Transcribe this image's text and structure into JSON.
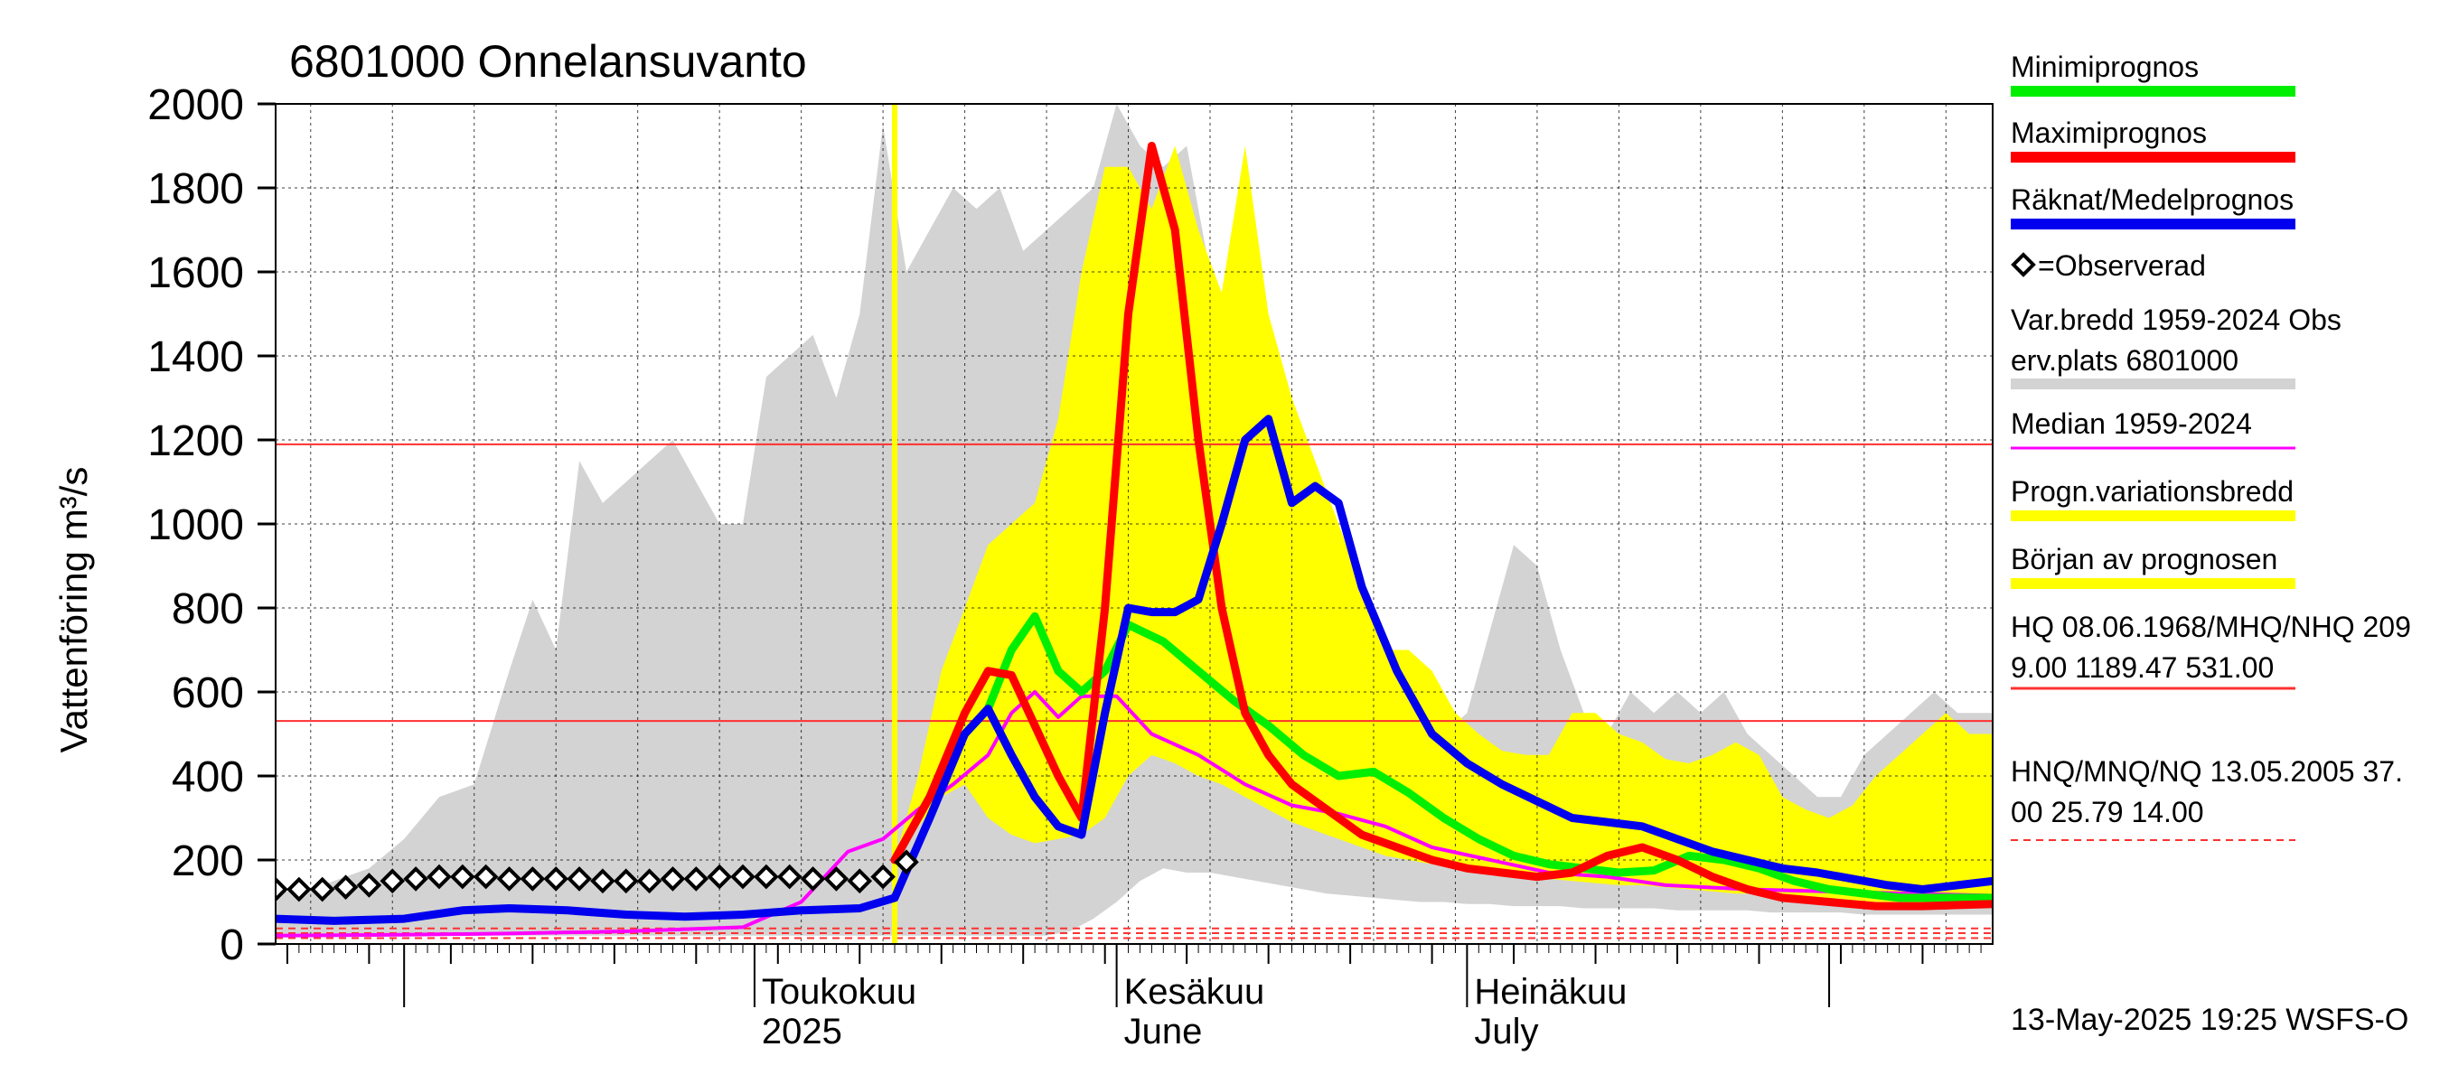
{
  "chart_data": {
    "type": "line",
    "title": "6801000 Onnelansuvanto",
    "ylabel": "Vattenföring m³/s",
    "ylim": [
      0,
      2000
    ],
    "yticks": [
      0,
      200,
      400,
      600,
      800,
      1000,
      1200,
      1400,
      1600,
      1800,
      2000
    ],
    "x_range": [
      "2025-03-21",
      "2025-08-15"
    ],
    "grid": true,
    "month_labels": [
      {
        "date": "2025-05-01",
        "line1": "Toukokuu",
        "line2": "2025"
      },
      {
        "date": "2025-06-01",
        "line1": "Kesäkuu",
        "line2": "June"
      },
      {
        "date": "2025-07-01",
        "line1": "Heinäkuu",
        "line2": "July"
      }
    ],
    "forecast_start": "2025-05-13",
    "reference_lines": [
      {
        "value": 1189.47,
        "color": "#ff3030",
        "style": "solid"
      },
      {
        "value": 531.0,
        "color": "#ff3030",
        "style": "solid"
      },
      {
        "value": 37.0,
        "color": "#ff3030",
        "style": "dashed"
      },
      {
        "value": 25.79,
        "color": "#ff3030",
        "style": "dashed"
      },
      {
        "value": 14.0,
        "color": "#ff3030",
        "style": "dashed"
      }
    ],
    "bands": [
      {
        "name": "Var.bredd 1959-2024 Obs erv.plats 6801000",
        "color": "#d3d3d3",
        "x": [
          "2025-03-21",
          "2025-03-25",
          "2025-03-29",
          "2025-04-01",
          "2025-04-04",
          "2025-04-07",
          "2025-04-10",
          "2025-04-12",
          "2025-04-14",
          "2025-04-16",
          "2025-04-18",
          "2025-04-20",
          "2025-04-22",
          "2025-04-24",
          "2025-04-26",
          "2025-04-28",
          "2025-04-30",
          "2025-05-02",
          "2025-05-04",
          "2025-05-06",
          "2025-05-08",
          "2025-05-10",
          "2025-05-12",
          "2025-05-14",
          "2025-05-16",
          "2025-05-18",
          "2025-05-20",
          "2025-05-22",
          "2025-05-24",
          "2025-05-26",
          "2025-05-28",
          "2025-05-30",
          "2025-06-01",
          "2025-06-03",
          "2025-06-05",
          "2025-06-07",
          "2025-06-09",
          "2025-06-11",
          "2025-06-13",
          "2025-06-15",
          "2025-06-17",
          "2025-06-19",
          "2025-06-21",
          "2025-06-23",
          "2025-06-25",
          "2025-06-27",
          "2025-06-29",
          "2025-07-01",
          "2025-07-03",
          "2025-07-05",
          "2025-07-07",
          "2025-07-09",
          "2025-07-11",
          "2025-07-13",
          "2025-07-15",
          "2025-07-17",
          "2025-07-19",
          "2025-07-21",
          "2025-07-23",
          "2025-07-25",
          "2025-07-27",
          "2025-07-29",
          "2025-07-31",
          "2025-08-02",
          "2025-08-04",
          "2025-08-06",
          "2025-08-08",
          "2025-08-10",
          "2025-08-12",
          "2025-08-15"
        ],
        "low": [
          20,
          20,
          20,
          20,
          20,
          20,
          20,
          20,
          20,
          20,
          20,
          20,
          20,
          20,
          20,
          20,
          20,
          20,
          20,
          20,
          20,
          20,
          20,
          20,
          20,
          20,
          20,
          20,
          20,
          20,
          30,
          60,
          100,
          150,
          180,
          170,
          170,
          160,
          150,
          140,
          130,
          120,
          115,
          110,
          105,
          100,
          100,
          95,
          95,
          90,
          90,
          90,
          85,
          85,
          85,
          85,
          80,
          80,
          80,
          80,
          75,
          75,
          75,
          75,
          70,
          70,
          70,
          70,
          70,
          70
        ],
        "high": [
          120,
          140,
          180,
          250,
          350,
          380,
          650,
          820,
          700,
          1150,
          1050,
          1100,
          1150,
          1200,
          1100,
          1000,
          1000,
          1350,
          1400,
          1450,
          1300,
          1500,
          1950,
          1600,
          1700,
          1800,
          1750,
          1800,
          1650,
          1700,
          1750,
          1800,
          2000,
          1900,
          1850,
          1900,
          1600,
          1300,
          1100,
          1000,
          950,
          800,
          700,
          800,
          650,
          600,
          500,
          550,
          750,
          950,
          900,
          700,
          550,
          500,
          600,
          550,
          600,
          550,
          600,
          500,
          450,
          400,
          350,
          350,
          450,
          500,
          550,
          600,
          550,
          550
        ]
      },
      {
        "name": "Progn.variationsbredd",
        "color": "#ffff00",
        "x": [
          "2025-05-13",
          "2025-05-15",
          "2025-05-17",
          "2025-05-19",
          "2025-05-21",
          "2025-05-23",
          "2025-05-25",
          "2025-05-27",
          "2025-05-29",
          "2025-05-31",
          "2025-06-02",
          "2025-06-04",
          "2025-06-06",
          "2025-06-08",
          "2025-06-10",
          "2025-06-12",
          "2025-06-14",
          "2025-06-16",
          "2025-06-18",
          "2025-06-20",
          "2025-06-22",
          "2025-06-24",
          "2025-06-26",
          "2025-06-28",
          "2025-06-30",
          "2025-07-02",
          "2025-07-04",
          "2025-07-06",
          "2025-07-08",
          "2025-07-10",
          "2025-07-12",
          "2025-07-14",
          "2025-07-16",
          "2025-07-18",
          "2025-07-20",
          "2025-07-22",
          "2025-07-24",
          "2025-07-26",
          "2025-07-28",
          "2025-07-30",
          "2025-08-01",
          "2025-08-03",
          "2025-08-05",
          "2025-08-07",
          "2025-08-09",
          "2025-08-11",
          "2025-08-13",
          "2025-08-15"
        ],
        "low": [
          200,
          280,
          350,
          380,
          300,
          260,
          240,
          250,
          260,
          300,
          400,
          450,
          430,
          400,
          380,
          350,
          320,
          290,
          270,
          250,
          230,
          210,
          200,
          190,
          180,
          170,
          165,
          160,
          155,
          150,
          145,
          140,
          140,
          135,
          130,
          125,
          120,
          120,
          115,
          110,
          110,
          105,
          100,
          100,
          95,
          95,
          90,
          90
        ],
        "high": [
          200,
          400,
          650,
          800,
          950,
          1000,
          1050,
          1250,
          1600,
          1850,
          1850,
          1750,
          1900,
          1700,
          1550,
          1900,
          1500,
          1300,
          1150,
          1000,
          850,
          700,
          700,
          650,
          550,
          500,
          460,
          450,
          450,
          550,
          550,
          500,
          480,
          440,
          430,
          450,
          480,
          450,
          350,
          320,
          300,
          330,
          400,
          450,
          500,
          550,
          500,
          500
        ]
      }
    ],
    "series": [
      {
        "name": "Median 1959-2024",
        "color": "#ff00ff",
        "width": 4,
        "x": [
          "2025-03-21",
          "2025-04-01",
          "2025-04-10",
          "2025-04-20",
          "2025-04-30",
          "2025-05-05",
          "2025-05-09",
          "2025-05-12",
          "2025-05-15",
          "2025-05-18",
          "2025-05-21",
          "2025-05-23",
          "2025-05-25",
          "2025-05-27",
          "2025-05-29",
          "2025-06-01",
          "2025-06-04",
          "2025-06-08",
          "2025-06-12",
          "2025-06-16",
          "2025-06-20",
          "2025-06-24",
          "2025-06-28",
          "2025-07-03",
          "2025-07-08",
          "2025-07-13",
          "2025-07-18",
          "2025-07-25",
          "2025-08-01",
          "2025-08-08",
          "2025-08-15"
        ],
        "y": [
          20,
          22,
          25,
          30,
          40,
          100,
          220,
          250,
          320,
          380,
          450,
          550,
          600,
          540,
          590,
          590,
          500,
          450,
          380,
          330,
          310,
          280,
          230,
          200,
          170,
          160,
          140,
          130,
          125,
          120,
          115
        ]
      },
      {
        "name": "Minimiprognos",
        "color": "#00ee00",
        "width": 9,
        "x": [
          "2025-05-13",
          "2025-05-16",
          "2025-05-19",
          "2025-05-21",
          "2025-05-23",
          "2025-05-25",
          "2025-05-27",
          "2025-05-29",
          "2025-05-31",
          "2025-06-02",
          "2025-06-05",
          "2025-06-08",
          "2025-06-11",
          "2025-06-14",
          "2025-06-17",
          "2025-06-20",
          "2025-06-23",
          "2025-06-26",
          "2025-06-29",
          "2025-07-02",
          "2025-07-05",
          "2025-07-08",
          "2025-07-11",
          "2025-07-14",
          "2025-07-17",
          "2025-07-20",
          "2025-07-23",
          "2025-07-26",
          "2025-07-29",
          "2025-08-01",
          "2025-08-04",
          "2025-08-07",
          "2025-08-10",
          "2025-08-15"
        ],
        "y": [
          200,
          350,
          500,
          560,
          700,
          780,
          650,
          600,
          650,
          760,
          720,
          650,
          580,
          520,
          450,
          400,
          410,
          360,
          300,
          250,
          210,
          190,
          180,
          170,
          175,
          210,
          200,
          180,
          150,
          130,
          120,
          110,
          110,
          110
        ]
      },
      {
        "name": "Maximiprognos",
        "color": "#ff0000",
        "width": 9,
        "x": [
          "2025-05-13",
          "2025-05-16",
          "2025-05-19",
          "2025-05-21",
          "2025-05-23",
          "2025-05-25",
          "2025-05-27",
          "2025-05-29",
          "2025-05-31",
          "2025-06-02",
          "2025-06-04",
          "2025-06-06",
          "2025-06-08",
          "2025-06-10",
          "2025-06-12",
          "2025-06-14",
          "2025-06-16",
          "2025-06-18",
          "2025-06-20",
          "2025-06-22",
          "2025-06-25",
          "2025-06-28",
          "2025-07-01",
          "2025-07-04",
          "2025-07-07",
          "2025-07-10",
          "2025-07-13",
          "2025-07-16",
          "2025-07-19",
          "2025-07-22",
          "2025-07-25",
          "2025-07-28",
          "2025-08-01",
          "2025-08-05",
          "2025-08-09",
          "2025-08-15"
        ],
        "y": [
          200,
          350,
          550,
          650,
          640,
          520,
          400,
          300,
          800,
          1500,
          1900,
          1700,
          1200,
          800,
          550,
          450,
          380,
          340,
          300,
          260,
          230,
          200,
          180,
          170,
          160,
          170,
          210,
          230,
          200,
          160,
          130,
          110,
          100,
          90,
          90,
          95
        ]
      },
      {
        "name": "Räknat/Medelprognos",
        "color": "#0000ee",
        "width": 9,
        "x": [
          "2025-03-21",
          "2025-03-26",
          "2025-04-01",
          "2025-04-06",
          "2025-04-10",
          "2025-04-15",
          "2025-04-20",
          "2025-04-25",
          "2025-04-30",
          "2025-05-05",
          "2025-05-10",
          "2025-05-13",
          "2025-05-16",
          "2025-05-19",
          "2025-05-21",
          "2025-05-23",
          "2025-05-25",
          "2025-05-27",
          "2025-05-29",
          "2025-05-31",
          "2025-06-02",
          "2025-06-04",
          "2025-06-06",
          "2025-06-08",
          "2025-06-10",
          "2025-06-12",
          "2025-06-14",
          "2025-06-16",
          "2025-06-18",
          "2025-06-20",
          "2025-06-22",
          "2025-06-25",
          "2025-06-28",
          "2025-07-01",
          "2025-07-04",
          "2025-07-07",
          "2025-07-10",
          "2025-07-13",
          "2025-07-16",
          "2025-07-19",
          "2025-07-22",
          "2025-07-25",
          "2025-07-28",
          "2025-07-31",
          "2025-08-03",
          "2025-08-06",
          "2025-08-09",
          "2025-08-12",
          "2025-08-15"
        ],
        "y": [
          60,
          55,
          60,
          80,
          85,
          80,
          70,
          65,
          70,
          80,
          85,
          110,
          300,
          500,
          560,
          450,
          350,
          280,
          260,
          550,
          800,
          790,
          790,
          820,
          1000,
          1200,
          1250,
          1050,
          1090,
          1050,
          850,
          650,
          500,
          430,
          380,
          340,
          300,
          290,
          280,
          250,
          220,
          200,
          180,
          170,
          155,
          140,
          130,
          140,
          150
        ]
      }
    ],
    "observed": {
      "name": "=Observerad",
      "x": [
        "2025-03-21",
        "2025-03-23",
        "2025-03-25",
        "2025-03-27",
        "2025-03-29",
        "2025-03-31",
        "2025-04-02",
        "2025-04-04",
        "2025-04-06",
        "2025-04-08",
        "2025-04-10",
        "2025-04-12",
        "2025-04-14",
        "2025-04-16",
        "2025-04-18",
        "2025-04-20",
        "2025-04-22",
        "2025-04-24",
        "2025-04-26",
        "2025-04-28",
        "2025-04-30",
        "2025-05-02",
        "2025-05-04",
        "2025-05-06",
        "2025-05-08",
        "2025-05-10",
        "2025-05-12",
        "2025-05-14"
      ],
      "y": [
        130,
        130,
        130,
        135,
        140,
        150,
        155,
        160,
        160,
        160,
        155,
        155,
        155,
        155,
        150,
        150,
        150,
        155,
        155,
        160,
        160,
        160,
        160,
        155,
        155,
        150,
        160,
        195
      ]
    },
    "legend": [
      {
        "label": "Minimiprognos",
        "color": "#00ee00",
        "kind": "line"
      },
      {
        "label": "Maximiprognos",
        "color": "#ff0000",
        "kind": "line"
      },
      {
        "label": "Räknat/Medelprognos",
        "color": "#0000ee",
        "kind": "line"
      },
      {
        "label": "=Observerad",
        "kind": "marker"
      },
      {
        "label": "Var.bredd 1959-2024   Obs",
        "label2": "erv.plats 6801000",
        "color": "#d3d3d3",
        "kind": "line"
      },
      {
        "label": "Median 1959-2024",
        "color": "#ff00ff",
        "kind": "thin"
      },
      {
        "label": "Progn.variationsbredd",
        "color": "#ffff00",
        "kind": "line"
      },
      {
        "label": "Början av prognosen",
        "color": "#ffff00",
        "kind": "line"
      },
      {
        "label": "HQ 08.06.1968/MHQ/NHQ 209",
        "label2": "9.00 1189.47 531.00",
        "color": "#ff3030",
        "kind": "thin"
      },
      {
        "label": "HNQ/MNQ/NQ 13.05.2005 37.",
        "label2": "00 25.79 14.00",
        "color": "#ff3030",
        "kind": "dashed"
      }
    ],
    "footer": "13-May-2025 19:25 WSFS-O"
  }
}
